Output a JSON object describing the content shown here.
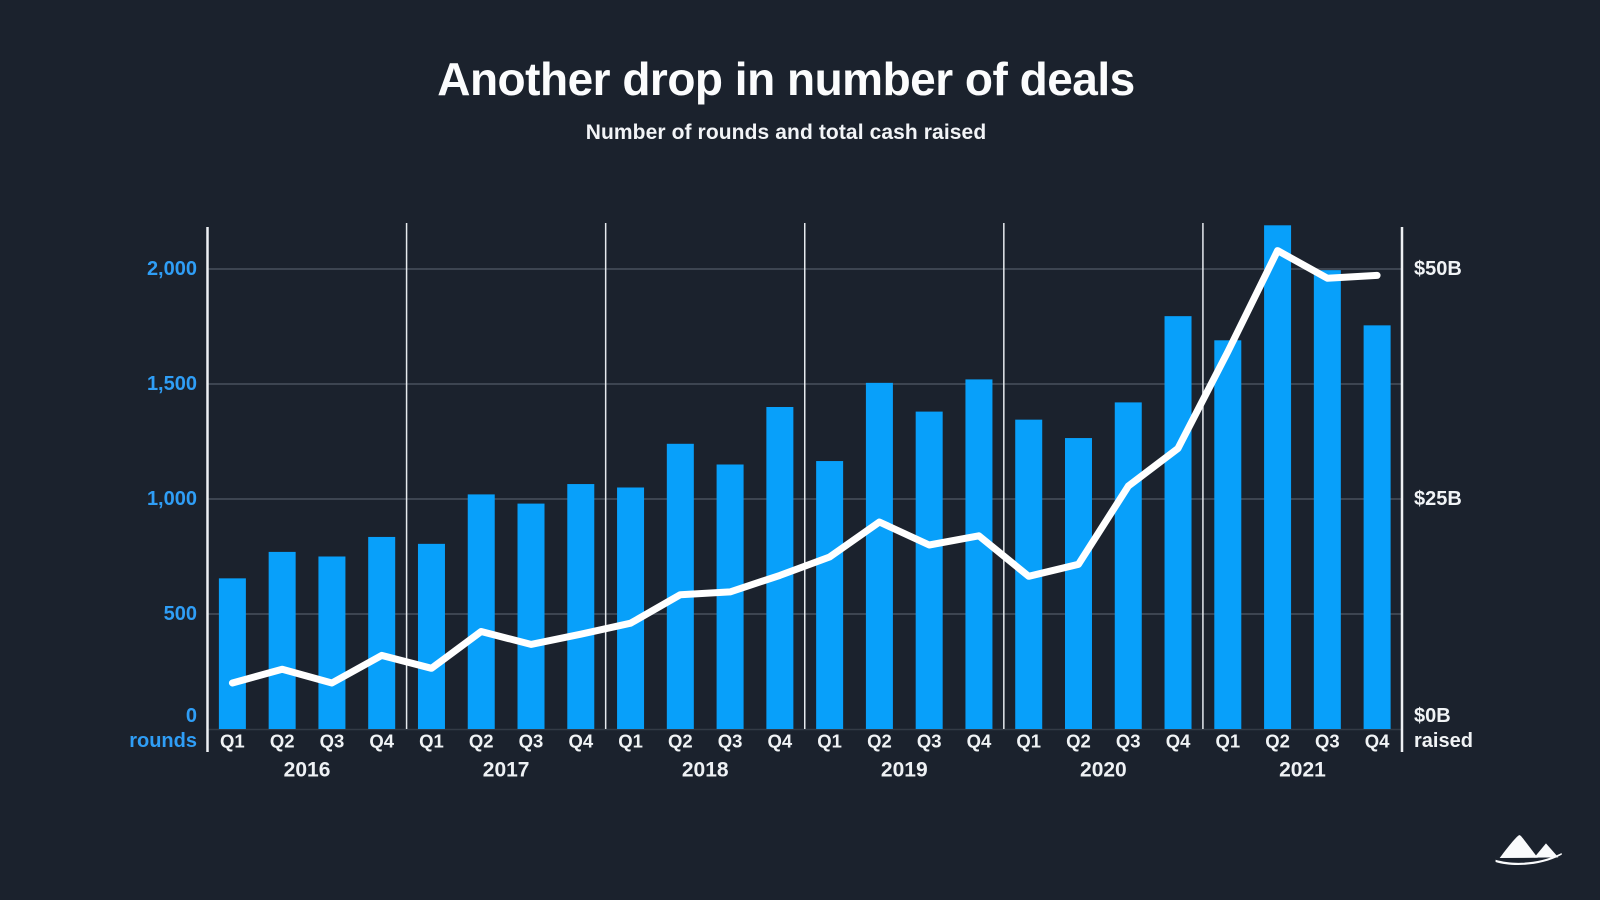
{
  "header": {
    "title": "Another drop in number of deals",
    "subtitle": "Number of rounds and total cash raised"
  },
  "colors": {
    "background": "#1b222d",
    "bar": "#08a0fa",
    "line": "#ffffff",
    "left_axis_text": "#2f9ef6",
    "right_axis_text": "#f0f3f5",
    "gridline": "#3d4551",
    "axis_line": "#edf0f3",
    "year_separator": "#e6eaee",
    "category_text": "#f0f3f5"
  },
  "logo": {
    "name": "mountains-logo"
  },
  "chart_data": {
    "type": "bar",
    "combo": "bar series on left axis + line series on right axis",
    "title": "Another drop in number of deals",
    "subtitle": "Number of rounds and total cash raised",
    "legend": "none",
    "grid": "horizontal gridlines at left-axis ticks; thin vertical white separators between years; white axis lines on both sides",
    "years": [
      "2016",
      "2017",
      "2018",
      "2019",
      "2020",
      "2021"
    ],
    "quarters": [
      "Q1",
      "Q2",
      "Q3",
      "Q4"
    ],
    "categories": [
      "2016 Q1",
      "2016 Q2",
      "2016 Q3",
      "2016 Q4",
      "2017 Q1",
      "2017 Q2",
      "2017 Q3",
      "2017 Q4",
      "2018 Q1",
      "2018 Q2",
      "2018 Q3",
      "2018 Q4",
      "2019 Q1",
      "2019 Q2",
      "2019 Q3",
      "2019 Q4",
      "2020 Q1",
      "2020 Q2",
      "2020 Q3",
      "2020 Q4",
      "2021 Q1",
      "2021 Q2",
      "2021 Q3",
      "2021 Q4"
    ],
    "series": [
      {
        "name": "Number of rounds",
        "type": "bar",
        "axis": "left",
        "color": "#08a0fa",
        "values": [
          655,
          770,
          750,
          835,
          805,
          1020,
          980,
          1065,
          1050,
          1240,
          1150,
          1400,
          1165,
          1505,
          1380,
          1520,
          1345,
          1265,
          1420,
          1795,
          1690,
          2190,
          1995,
          1755
        ]
      },
      {
        "name": "Total cash raised",
        "type": "line",
        "axis": "right",
        "unit": "$B",
        "color": "#ffffff",
        "values": [
          5.0,
          6.5,
          5.0,
          8.0,
          6.6,
          10.6,
          9.2,
          10.3,
          11.5,
          14.6,
          14.9,
          16.7,
          18.7,
          22.5,
          20.0,
          21.0,
          16.6,
          17.9,
          26.4,
          30.5,
          41.0,
          52.0,
          49.0,
          49.3
        ]
      }
    ],
    "left_axis": {
      "label": "rounds",
      "min": 0,
      "max": 2000,
      "ticks": [
        {
          "value": 0,
          "label": "0"
        },
        {
          "value": 500,
          "label": "500"
        },
        {
          "value": 1000,
          "label": "1,000"
        },
        {
          "value": 1500,
          "label": "1,500"
        },
        {
          "value": 2000,
          "label": "2,000"
        }
      ]
    },
    "right_axis": {
      "label": "raised",
      "min": 0,
      "max": 50,
      "ticks": [
        {
          "value": 0,
          "label": "$0B"
        },
        {
          "value": 25,
          "label": "$25B"
        },
        {
          "value": 50,
          "label": "$50B"
        }
      ]
    }
  }
}
